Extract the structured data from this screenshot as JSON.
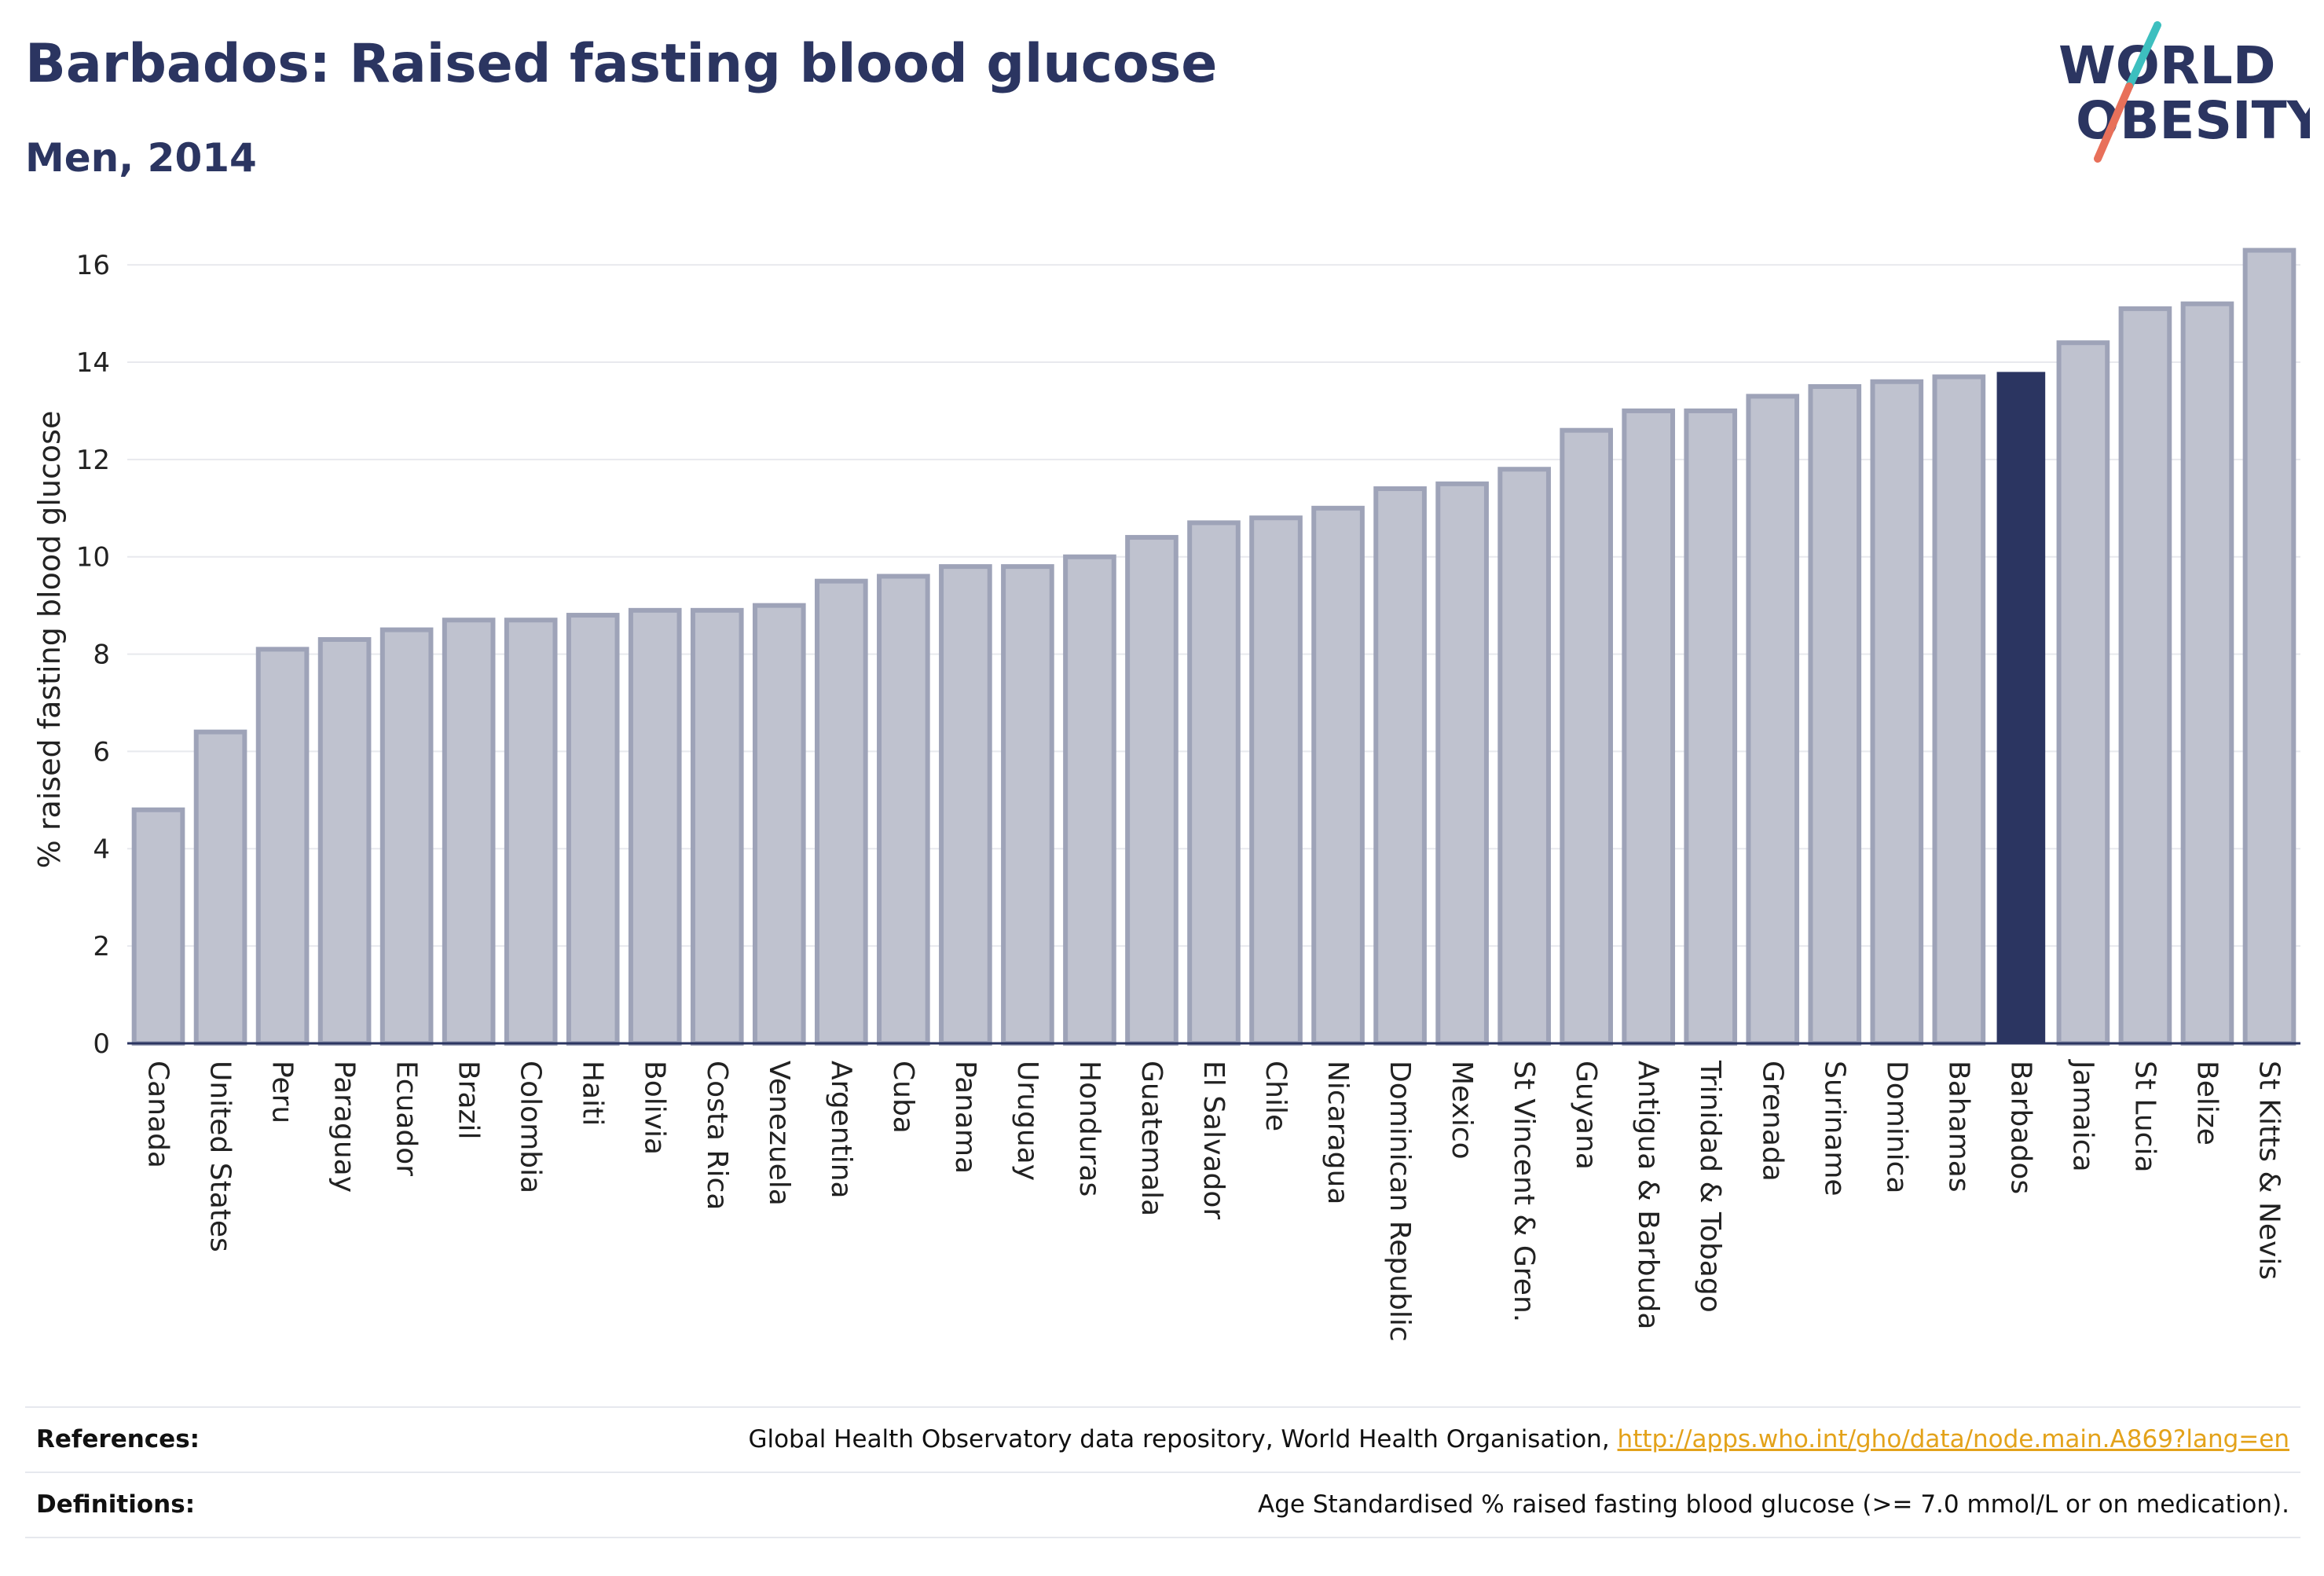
{
  "title": "Barbados: Raised fasting blood glucose",
  "subtitle": "Men, 2014",
  "logo": {
    "line1": "WORLD",
    "line2": "OBESITY",
    "colors": {
      "text": "#2b3561",
      "slash_top": "#3dbfbf",
      "slash_bottom": "#e8705a"
    }
  },
  "colors": {
    "bar": "#bfc2cf",
    "bar_border": "#9ea3b8",
    "highlight": "#2b3561",
    "grid": "#e8e9ee"
  },
  "chart_data": {
    "type": "bar",
    "ylabel": "% raised fasting blood glucose",
    "xlabel": "",
    "ylim": [
      0,
      16.6
    ],
    "yticks": [
      0,
      2,
      4,
      6,
      8,
      10,
      12,
      14,
      16
    ],
    "highlight": "Barbados",
    "grid": true,
    "categories": [
      "Canada",
      "United States",
      "Peru",
      "Paraguay",
      "Ecuador",
      "Brazil",
      "Colombia",
      "Haiti",
      "Bolivia",
      "Costa Rica",
      "Venezuela",
      "Argentina",
      "Cuba",
      "Panama",
      "Uruguay",
      "Honduras",
      "Guatemala",
      "El Salvador",
      "Chile",
      "Nicaragua",
      "Dominican Republic",
      "Mexico",
      "St Vincent & Gren.",
      "Guyana",
      "Antigua & Barbuda",
      "Trinidad & Tobago",
      "Grenada",
      "Suriname",
      "Dominica",
      "Bahamas",
      "Barbados",
      "Jamaica",
      "St Lucia",
      "Belize",
      "St Kitts & Nevis"
    ],
    "values": [
      4.8,
      6.4,
      8.1,
      8.3,
      8.5,
      8.7,
      8.7,
      8.8,
      8.9,
      8.9,
      9.0,
      9.5,
      9.6,
      9.8,
      9.8,
      10.0,
      10.4,
      10.7,
      10.8,
      11.0,
      11.4,
      11.5,
      11.8,
      12.6,
      13.0,
      13.0,
      13.3,
      13.5,
      13.6,
      13.7,
      13.8,
      14.4,
      15.1,
      15.2,
      16.3
    ]
  },
  "footer": {
    "references_label": "References:",
    "references_text": "Global Health Observatory data repository, World Health Organisation, ",
    "references_link": "http://apps.who.int/gho/data/node.main.A869?lang=en",
    "definitions_label": "Definitions:",
    "definitions_text": "Age Standardised % raised fasting blood glucose (>= 7.0 mmol/L or on medication)."
  }
}
